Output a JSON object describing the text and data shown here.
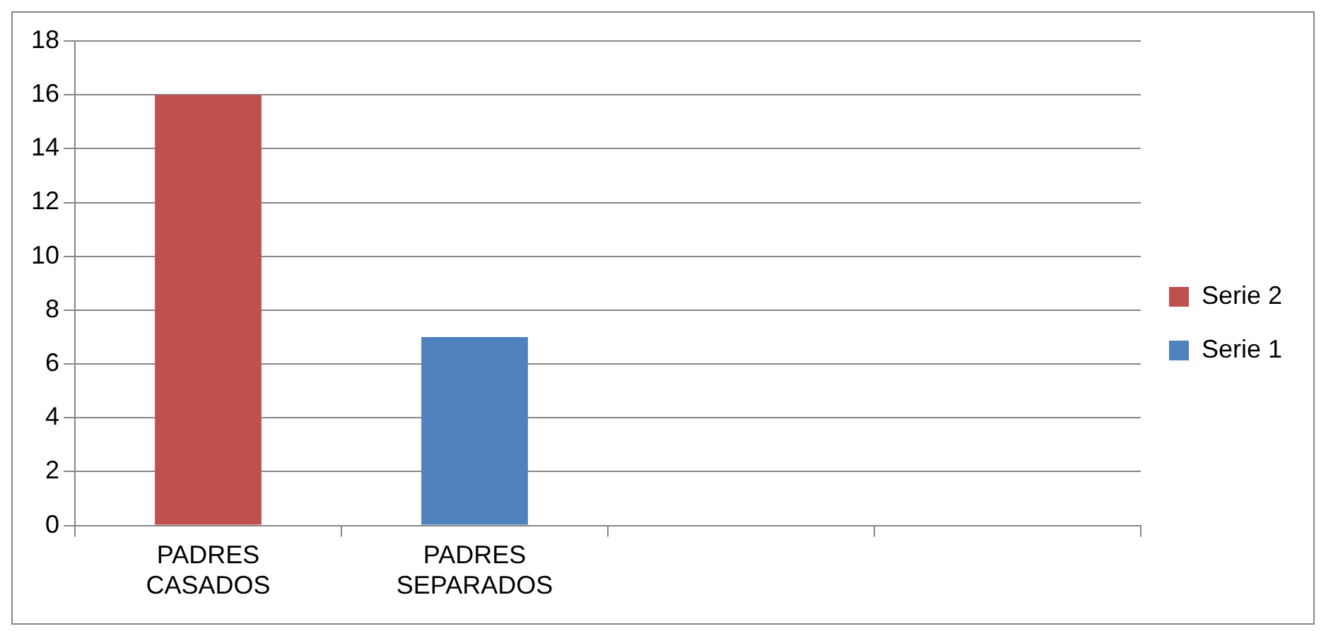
{
  "chart_data": {
    "type": "bar",
    "stacked": true,
    "categories": [
      "PADRES CASADOS",
      "PADRES SEPARADOS",
      null,
      null
    ],
    "series": [
      {
        "name": "Serie 1",
        "color": "#4f81bd",
        "values": [
          null,
          7,
          null,
          null
        ]
      },
      {
        "name": "Serie 2",
        "color": "#c0504d",
        "values": [
          16,
          null,
          null,
          null
        ]
      }
    ],
    "ylim": [
      0,
      18
    ],
    "yticks": [
      0,
      2,
      4,
      6,
      8,
      10,
      12,
      14,
      16,
      18
    ],
    "grid": "y",
    "legend": "right"
  }
}
